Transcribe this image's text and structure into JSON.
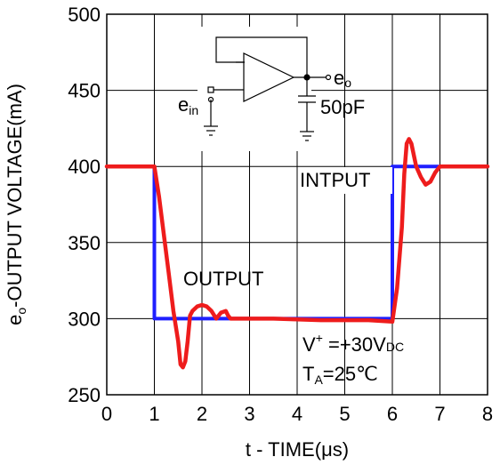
{
  "chart_data": {
    "type": "line",
    "title": "",
    "xlabel": {
      "prefix": "t - TIME(",
      "mu": "μ",
      "unit": "s)"
    },
    "ylabel": {
      "e": "e",
      "o": "o",
      "rest": "-OUTPUT VOLTAGE(mA)"
    },
    "xlim": [
      0,
      8
    ],
    "ylim": [
      250,
      500
    ],
    "xticks": [
      "0",
      "1",
      "2",
      "3",
      "4",
      "5",
      "6",
      "7",
      "8"
    ],
    "yticks": [
      "500",
      "450",
      "400",
      "350",
      "300",
      "250"
    ],
    "grid": true,
    "series": [
      {
        "name": "INTPUT",
        "color": "#1f1fff",
        "x": [
          0,
          1.0,
          1.0,
          6.0,
          6.0,
          8.0
        ],
        "y": [
          400,
          400,
          300,
          300,
          400,
          400
        ]
      },
      {
        "name": "OUTPUT",
        "color": "#ee1c1c",
        "x": [
          0,
          1.0,
          1.1,
          1.2,
          1.3,
          1.4,
          1.5,
          1.55,
          1.6,
          1.65,
          1.7,
          1.75,
          1.8,
          1.9,
          2.0,
          2.1,
          2.2,
          2.3,
          2.35,
          2.4,
          2.5,
          2.55,
          2.6,
          2.8,
          3.5,
          4.5,
          5.5,
          6.0,
          6.1,
          6.2,
          6.25,
          6.3,
          6.35,
          6.4,
          6.5,
          6.6,
          6.7,
          6.8,
          6.9,
          7.0,
          8.0
        ],
        "y": [
          400,
          400,
          380,
          355,
          330,
          305,
          285,
          270,
          268,
          272,
          285,
          302,
          305,
          308,
          309,
          308,
          305,
          300,
          302,
          304,
          305,
          302,
          300,
          300,
          300,
          299,
          299,
          298,
          320,
          360,
          395,
          415,
          418,
          415,
          400,
          393,
          388,
          390,
          396,
          400,
          400
        ]
      }
    ],
    "annotations": {
      "input_label": "INTPUT",
      "output_label": "OUTPUT",
      "vplus": {
        "v": "V",
        "sup": "+",
        "eq": " =+30V",
        "dc": "DC"
      },
      "ta": {
        "t": "T",
        "a": "A",
        "eq": "=25℃"
      }
    },
    "schematic": {
      "ein": {
        "e": "e",
        "in": "in"
      },
      "eo": {
        "e": "e",
        "o": "o"
      },
      "cap": "50pF"
    }
  }
}
